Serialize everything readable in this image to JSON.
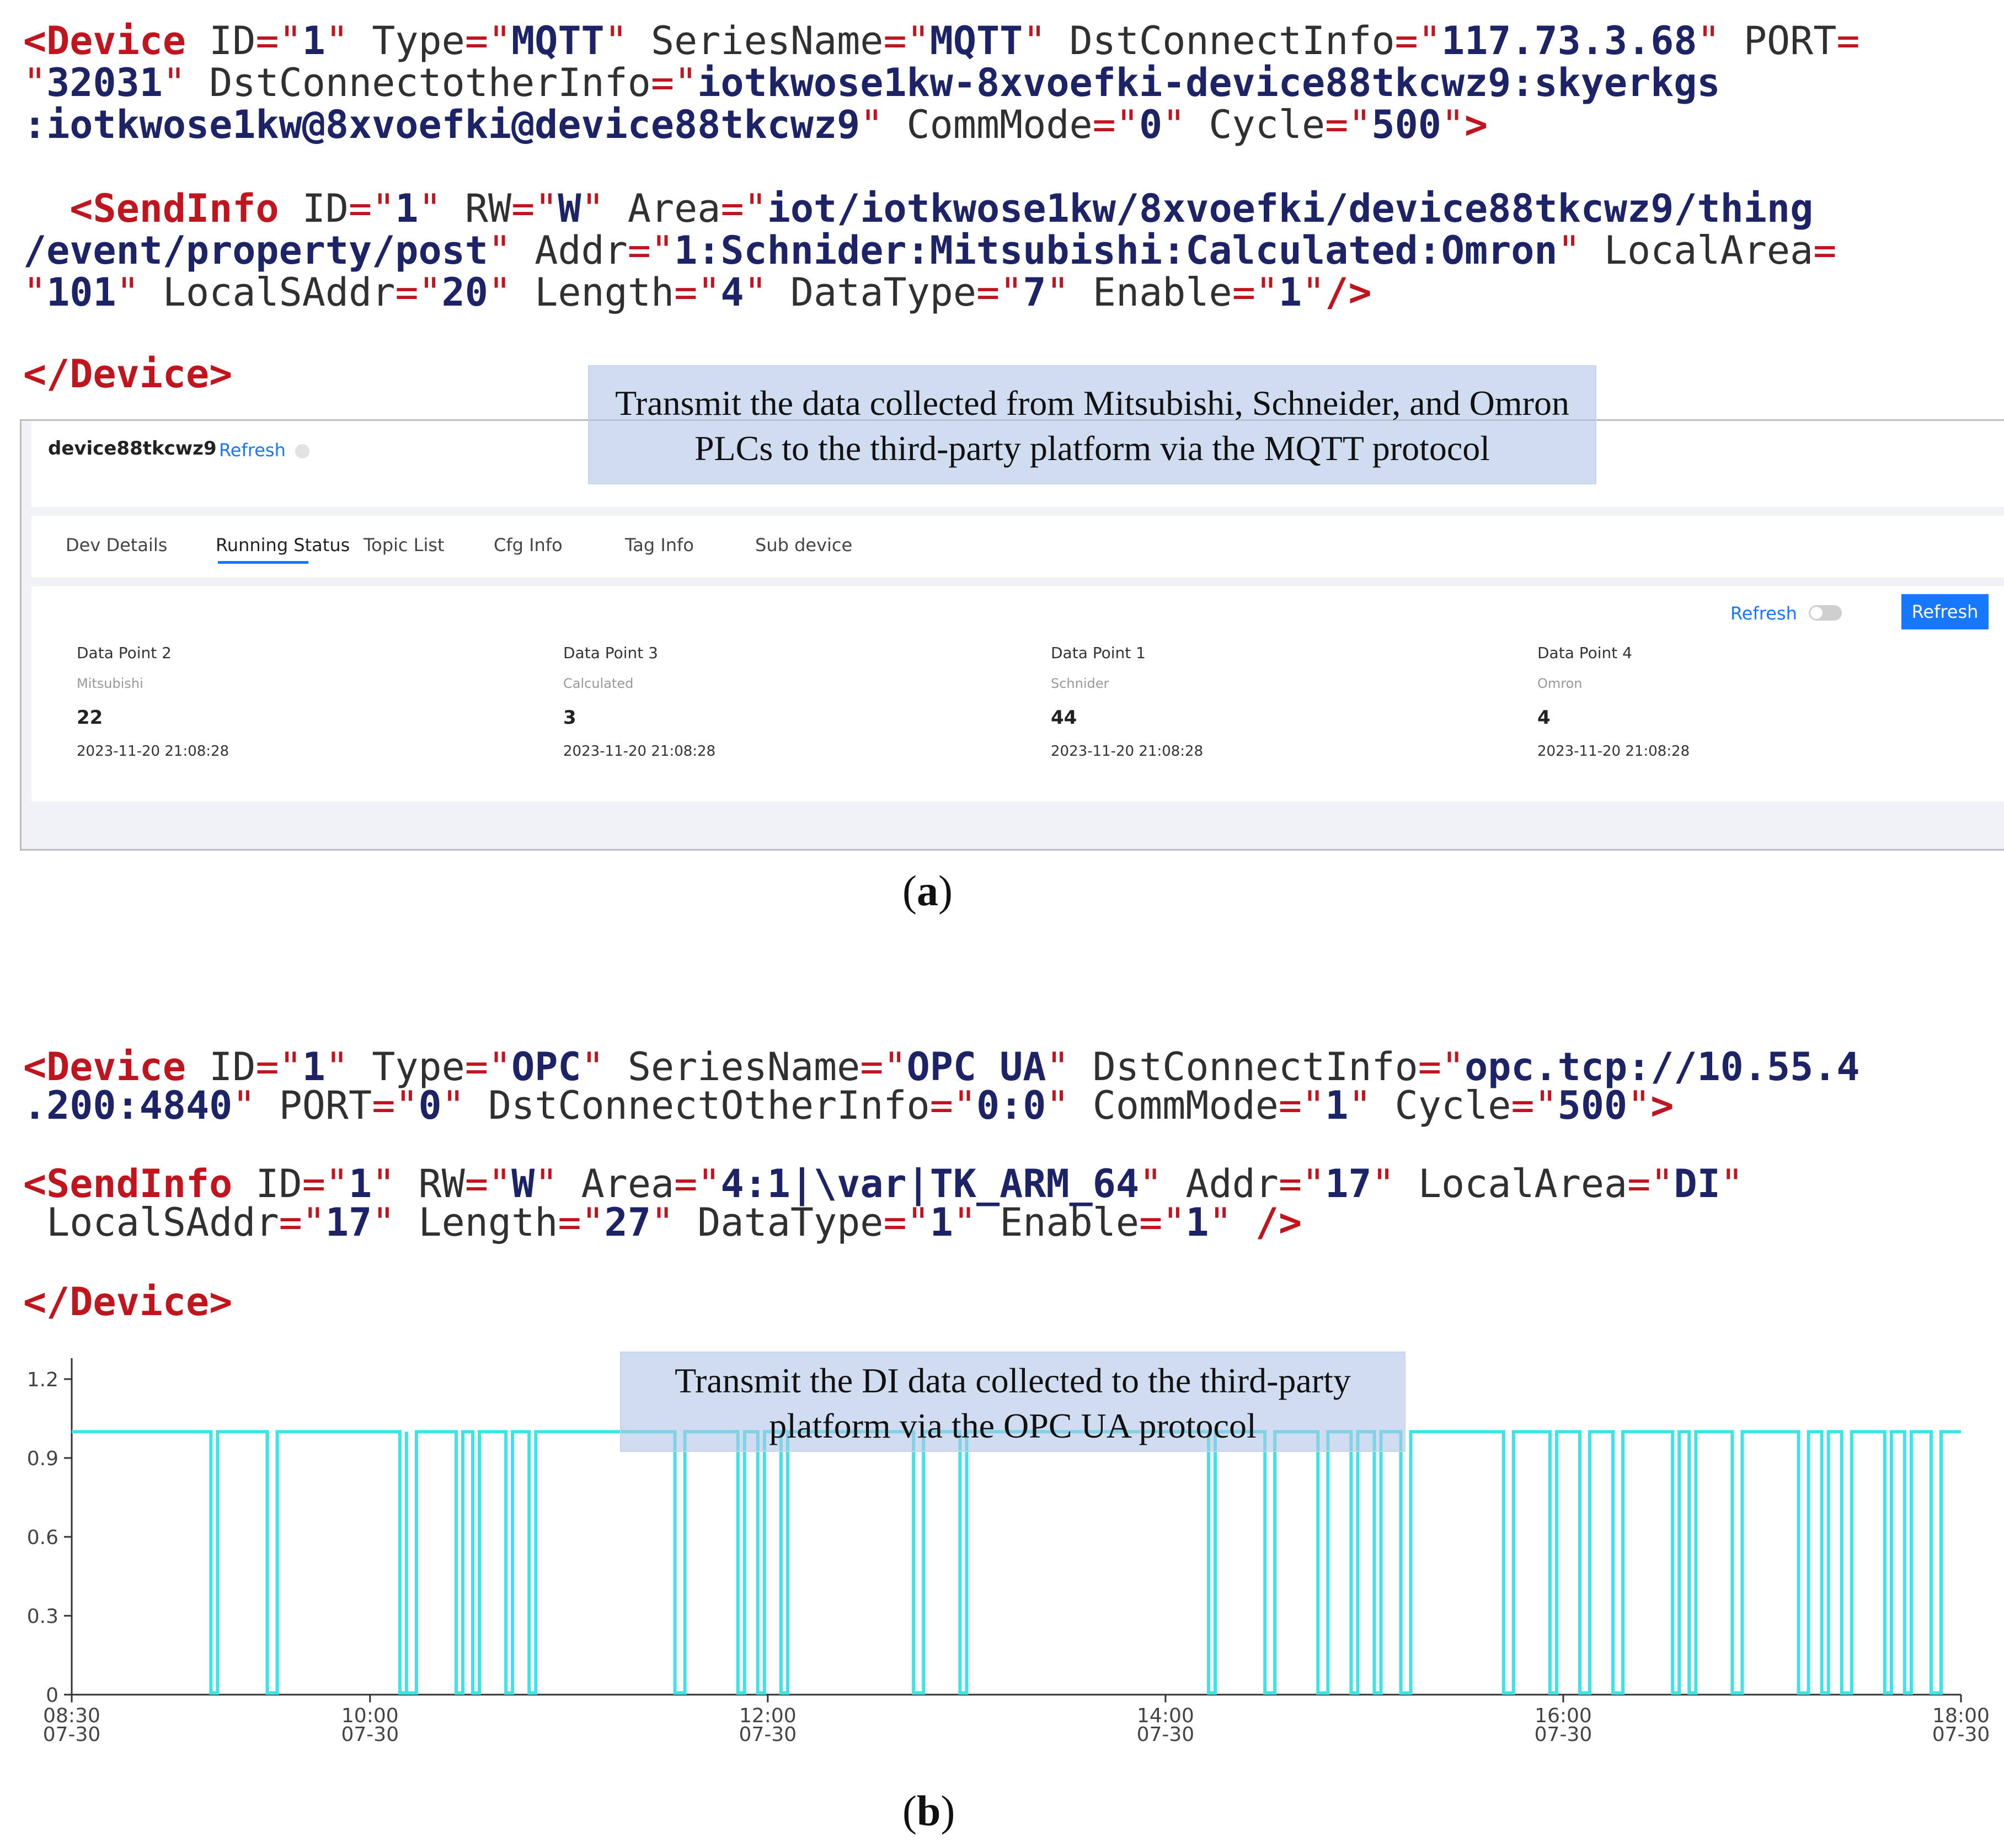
{
  "panel_a": {
    "device_line1": {
      "open": "<Device",
      "attrs": [
        [
          "ID",
          "1"
        ],
        [
          "Type",
          "MQTT"
        ],
        [
          "SeriesName",
          "MQTT"
        ],
        [
          "DstConnectInfo",
          "117.73.3.68"
        ]
      ],
      "tail_name": "PORT"
    },
    "device_line2": {
      "port_val": "32031",
      "other_name": "DstConnectotherInfo",
      "other_val_part1": "iotkwose1kw-8xvoefki-device88tkcwz9:skyerkgs"
    },
    "device_line3": {
      "other_val_part2": ":iotkwose1kw@8xvoefki@device88tkcwz9",
      "attrs": [
        [
          "CommMode",
          "0"
        ],
        [
          "Cycle",
          "500"
        ]
      ],
      "close": ">"
    },
    "send_line1": {
      "open": "<SendInfo",
      "attrs": [
        [
          "ID",
          "1"
        ],
        [
          "RW",
          "W"
        ]
      ],
      "area_name": "Area",
      "area_part1": "iot/iotkwose1kw/8xvoefki/device88tkcwz9/thing"
    },
    "send_line2": {
      "area_part2": "/event/property/post",
      "addr_name": "Addr",
      "addr_val": "1:Schnider:Mitsubishi:Calculated:Omron",
      "localarea_name": "LocalArea"
    },
    "send_line3": {
      "localarea_val": "101",
      "attrs": [
        [
          "LocalSAddr",
          "20"
        ],
        [
          "Length",
          "4"
        ],
        [
          "DataType",
          "7"
        ],
        [
          "Enable",
          "1"
        ]
      ],
      "close": "/>"
    },
    "device_close": "</Device>",
    "note": "Transmit the data collected from Mitsubishi, Schneider, and Omron PLCs to the third-party platform via the MQTT protocol",
    "caption_open": "(",
    "caption_letter": "a",
    "caption_close": ")",
    "ui": {
      "device_name": "device88tkcwz9",
      "header_refresh": "Refresh",
      "tabs": [
        "Dev Details",
        "Running Status",
        "Topic List",
        "Cfg Info",
        "Tag Info",
        "Sub device"
      ],
      "active_tab": 1,
      "auto_refresh_label": "Refresh",
      "refresh_button": "Refresh",
      "accent": "#1677ff",
      "data_points": [
        {
          "name": "Data Point 2",
          "source": "Mitsubishi",
          "value": "22",
          "time": "2023-11-20 21:08:28"
        },
        {
          "name": "Data Point 3",
          "source": "Calculated",
          "value": "3",
          "time": "2023-11-20 21:08:28"
        },
        {
          "name": "Data Point 1",
          "source": "Schnider",
          "value": "44",
          "time": "2023-11-20 21:08:28"
        },
        {
          "name": "Data Point 4",
          "source": "Omron",
          "value": "4",
          "time": "2023-11-20 21:08:28"
        }
      ]
    }
  },
  "panel_b": {
    "device_line1": {
      "open": "<Device",
      "attrs": [
        [
          "ID",
          "1"
        ],
        [
          "Type",
          "OPC"
        ],
        [
          "SeriesName",
          "OPC UA"
        ]
      ],
      "dst_name": "DstConnectInfo",
      "dst_part1": "opc.tcp://10.55.4"
    },
    "device_line2": {
      "dst_part2": ".200:4840",
      "attrs": [
        [
          "PORT",
          "0"
        ],
        [
          "DstConnectOtherInfo",
          "0:0"
        ],
        [
          "CommMode",
          "1"
        ],
        [
          "Cycle",
          "500"
        ]
      ],
      "close": ">"
    },
    "send_line1": {
      "open": "<SendInfo",
      "attrs": [
        [
          "ID",
          "1"
        ],
        [
          "RW",
          "W"
        ],
        [
          "Area",
          "4:1|\\var|TK_ARM_64"
        ],
        [
          "Addr",
          "17"
        ],
        [
          "LocalArea",
          "DI"
        ]
      ]
    },
    "send_line2": {
      "attrs": [
        [
          "LocalSAddr",
          "17"
        ],
        [
          "Length",
          "27"
        ],
        [
          "DataType",
          "1"
        ],
        [
          "Enable",
          "1"
        ]
      ],
      "close": "/>"
    },
    "device_close": "</Device>",
    "note": "Transmit the DI data collected to the third-party platform via the OPC UA protocol",
    "caption_open": "(",
    "caption_letter": "b",
    "caption_close": ")"
  },
  "chart_data": {
    "type": "line",
    "title": "",
    "xlabel": "",
    "ylabel": "",
    "ylim": [
      0,
      1.2
    ],
    "yticks": [
      "0",
      "0.3",
      "0.6",
      "0.9",
      "1.2"
    ],
    "xlim": [
      "07-30 08:30",
      "07-30 18:00"
    ],
    "xticks": [
      {
        "time": "08:30",
        "date": "07-30"
      },
      {
        "time": "10:00",
        "date": "07-30"
      },
      {
        "time": "12:00",
        "date": "07-30"
      },
      {
        "time": "14:00",
        "date": "07-30"
      },
      {
        "time": "16:00",
        "date": "07-30"
      },
      {
        "time": "18:00",
        "date": "07-30"
      }
    ],
    "grid": false,
    "color": "#3ee3e6",
    "high_value": 1,
    "low_value": 0,
    "zero_intervals": [
      [
        "09:12",
        "09:14"
      ],
      [
        "09:29",
        "09:32"
      ],
      [
        "10:09",
        "10:11"
      ],
      [
        "10:11",
        "10:14"
      ],
      [
        "10:26",
        "10:28"
      ],
      [
        "10:31",
        "10:33"
      ],
      [
        "10:41",
        "10:43"
      ],
      [
        "10:48",
        "10:50"
      ],
      [
        "11:32",
        "11:35"
      ],
      [
        "11:51",
        "11:53"
      ],
      [
        "11:57",
        "11:59"
      ],
      [
        "12:04",
        "12:06"
      ],
      [
        "12:44",
        "12:47"
      ],
      [
        "12:58",
        "13:00"
      ],
      [
        "14:13",
        "14:15"
      ],
      [
        "14:30",
        "14:33"
      ],
      [
        "14:46",
        "14:49"
      ],
      [
        "14:56",
        "14:58"
      ],
      [
        "15:03",
        "15:05"
      ],
      [
        "15:11",
        "15:14"
      ],
      [
        "15:42",
        "15:45"
      ],
      [
        "15:56",
        "15:58"
      ],
      [
        "16:05",
        "16:08"
      ],
      [
        "16:15",
        "16:18"
      ],
      [
        "16:33",
        "16:35"
      ],
      [
        "16:38",
        "16:40"
      ],
      [
        "16:51",
        "16:54"
      ],
      [
        "17:11",
        "17:14"
      ],
      [
        "17:18",
        "17:20"
      ],
      [
        "17:24",
        "17:27"
      ],
      [
        "17:37",
        "17:39"
      ],
      [
        "17:43",
        "17:45"
      ],
      [
        "17:51",
        "17:54"
      ]
    ]
  }
}
